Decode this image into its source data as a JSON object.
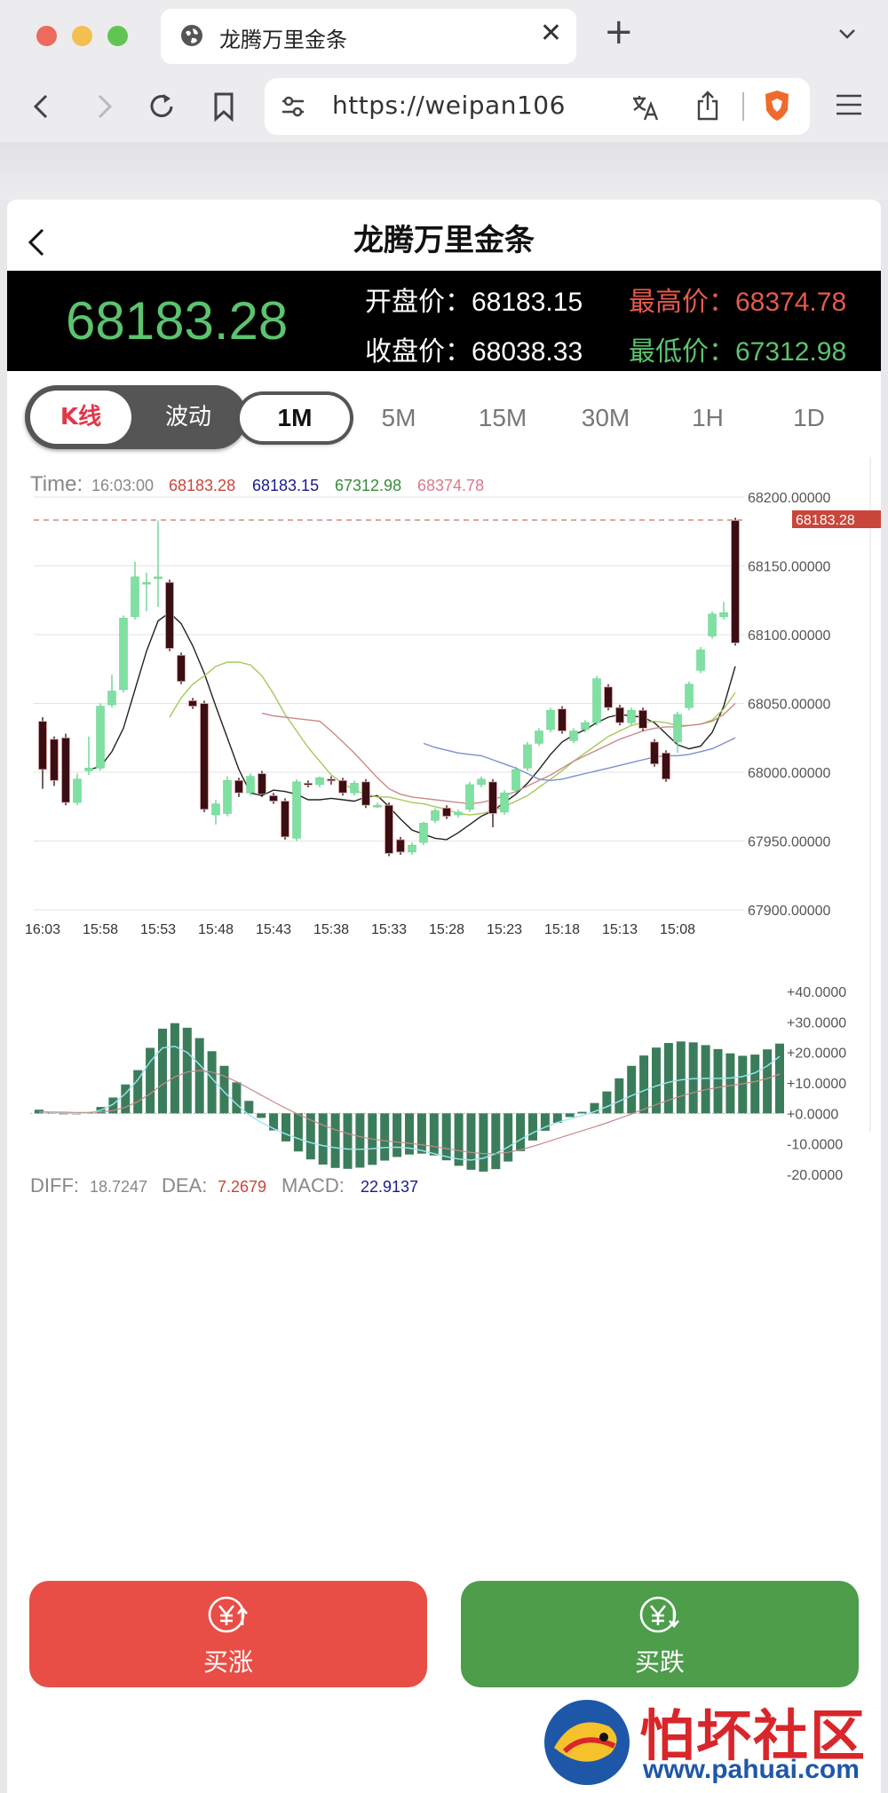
{
  "browser": {
    "tab_title": "龙腾万里金条",
    "url": "https://weipan106"
  },
  "page": {
    "title": "龙腾万里金条"
  },
  "quote": {
    "current_price": "68183.28",
    "open_label": "开盘价：",
    "open_value": "68183.15",
    "high_label": "最高价：",
    "high_value": "68374.78",
    "close_label": "收盘价：",
    "close_value": "68038.33",
    "low_label": "最低价：",
    "low_value": "67312.98"
  },
  "tabs": {
    "kline": "K线",
    "wave": "波动",
    "periods": [
      "1M",
      "5M",
      "15M",
      "30M",
      "1H",
      "1D"
    ],
    "active_period": "1M"
  },
  "chart_info": {
    "time_label": "Time:",
    "time_value": "16:03:00",
    "v1": "68183.28",
    "v2": "68183.15",
    "v3": "67312.98",
    "v4": "68374.78",
    "price_tag": "68183.28"
  },
  "chart_data": [
    {
      "type": "candlestick",
      "x": [
        "16:03",
        "15:58",
        "15:53",
        "15:48",
        "15:43",
        "15:38",
        "15:33",
        "15:28",
        "15:23",
        "15:18",
        "15:13",
        "15:08"
      ],
      "y_ticks": [
        "68200.00000",
        "68150.00000",
        "68100.00000",
        "68050.00000",
        "68000.00000",
        "67950.00000",
        "67900.00000"
      ],
      "ylim": [
        67900,
        68200
      ],
      "last_price": 68183.28,
      "candles": [
        {
          "o": 68037,
          "c": 68002,
          "h": 68040,
          "l": 67988
        },
        {
          "o": 68024,
          "c": 67994,
          "h": 68026,
          "l": 67990
        },
        {
          "o": 68025,
          "c": 67978,
          "h": 68028,
          "l": 67976
        },
        {
          "o": 67978,
          "c": 67995,
          "h": 67999,
          "l": 67976
        },
        {
          "o": 68001,
          "c": 68003,
          "h": 68026,
          "l": 67998
        },
        {
          "o": 68003,
          "c": 68048,
          "h": 68050,
          "l": 68001
        },
        {
          "o": 68049,
          "c": 68059,
          "h": 68071,
          "l": 68047
        },
        {
          "o": 68060,
          "c": 68112,
          "h": 68114,
          "l": 68058
        },
        {
          "o": 68113,
          "c": 68142,
          "h": 68153,
          "l": 68111
        },
        {
          "o": 68138,
          "c": 68138,
          "h": 68145,
          "l": 68117
        },
        {
          "o": 68141,
          "c": 68142,
          "h": 68183,
          "l": 68120
        },
        {
          "o": 68138,
          "c": 68090,
          "h": 68140,
          "l": 68088
        },
        {
          "o": 68085,
          "c": 68066,
          "h": 68087,
          "l": 68064
        },
        {
          "o": 68052,
          "c": 68048,
          "h": 68054,
          "l": 68046
        },
        {
          "o": 68050,
          "c": 67973,
          "h": 68052,
          "l": 67971
        },
        {
          "o": 67969,
          "c": 67977,
          "h": 67980,
          "l": 67962
        },
        {
          "o": 67970,
          "c": 67994,
          "h": 67997,
          "l": 67968
        },
        {
          "o": 67994,
          "c": 67985,
          "h": 67996,
          "l": 67982
        },
        {
          "o": 67985,
          "c": 67997,
          "h": 67999,
          "l": 67983
        },
        {
          "o": 67999,
          "c": 67984,
          "h": 68001,
          "l": 67982
        },
        {
          "o": 67983,
          "c": 67979,
          "h": 67985,
          "l": 67977
        },
        {
          "o": 67979,
          "c": 67953,
          "h": 67981,
          "l": 67951
        },
        {
          "o": 67952,
          "c": 67993,
          "h": 67995,
          "l": 67950
        },
        {
          "o": 67992,
          "c": 67991,
          "h": 67994,
          "l": 67989
        },
        {
          "o": 67991,
          "c": 67996,
          "h": 67997,
          "l": 67989
        },
        {
          "o": 67995,
          "c": 67994,
          "h": 67997,
          "l": 67991
        },
        {
          "o": 67994,
          "c": 67985,
          "h": 67996,
          "l": 67983
        },
        {
          "o": 67985,
          "c": 67992,
          "h": 67994,
          "l": 67983
        },
        {
          "o": 67993,
          "c": 67976,
          "h": 67995,
          "l": 67974
        },
        {
          "o": 67976,
          "c": 67976,
          "h": 67978,
          "l": 67974
        },
        {
          "o": 67976,
          "c": 67941,
          "h": 67978,
          "l": 67939
        },
        {
          "o": 67951,
          "c": 67942,
          "h": 67953,
          "l": 67940
        },
        {
          "o": 67942,
          "c": 67947,
          "h": 67949,
          "l": 67940
        },
        {
          "o": 67949,
          "c": 67963,
          "h": 67964,
          "l": 67947
        },
        {
          "o": 67965,
          "c": 67972,
          "h": 67974,
          "l": 67963
        },
        {
          "o": 67974,
          "c": 67968,
          "h": 67976,
          "l": 67966
        },
        {
          "o": 67969,
          "c": 67971,
          "h": 67973,
          "l": 67967
        },
        {
          "o": 67973,
          "c": 67991,
          "h": 67993,
          "l": 67971
        },
        {
          "o": 67991,
          "c": 67995,
          "h": 67997,
          "l": 67989
        },
        {
          "o": 67993,
          "c": 67970,
          "h": 67995,
          "l": 67960
        },
        {
          "o": 67971,
          "c": 67985,
          "h": 67987,
          "l": 67969
        },
        {
          "o": 67987,
          "c": 68002,
          "h": 68004,
          "l": 67985
        },
        {
          "o": 68003,
          "c": 68020,
          "h": 68022,
          "l": 68001
        },
        {
          "o": 68021,
          "c": 68030,
          "h": 68032,
          "l": 68019
        },
        {
          "o": 68031,
          "c": 68045,
          "h": 68047,
          "l": 68029
        },
        {
          "o": 68046,
          "c": 68030,
          "h": 68048,
          "l": 68028
        },
        {
          "o": 68023,
          "c": 68030,
          "h": 68032,
          "l": 68021
        },
        {
          "o": 68031,
          "c": 68036,
          "h": 68038,
          "l": 68029
        },
        {
          "o": 68036,
          "c": 68068,
          "h": 68070,
          "l": 68034
        },
        {
          "o": 68062,
          "c": 68047,
          "h": 68064,
          "l": 68045
        },
        {
          "o": 68047,
          "c": 68036,
          "h": 68049,
          "l": 68034
        },
        {
          "o": 68036,
          "c": 68045,
          "h": 68047,
          "l": 68034
        },
        {
          "o": 68045,
          "c": 68032,
          "h": 68047,
          "l": 68030
        },
        {
          "o": 68022,
          "c": 68006,
          "h": 68024,
          "l": 68004
        },
        {
          "o": 68014,
          "c": 67995,
          "h": 68016,
          "l": 67993
        },
        {
          "o": 68022,
          "c": 68042,
          "h": 68044,
          "l": 68014
        },
        {
          "o": 68047,
          "c": 68064,
          "h": 68066,
          "l": 68045
        },
        {
          "o": 68074,
          "c": 68089,
          "h": 68091,
          "l": 68072
        },
        {
          "o": 68099,
          "c": 68115,
          "h": 68117,
          "l": 68097
        },
        {
          "o": 68113,
          "c": 68116,
          "h": 68124,
          "l": 68111
        },
        {
          "o": 68183,
          "c": 68094,
          "h": 68185,
          "l": 68092
        }
      ],
      "ma_series": [
        {
          "color": "#222222",
          "values": [
            null,
            null,
            null,
            null,
            68002,
            68004,
            68015,
            68032,
            68060,
            68088,
            68110,
            68116,
            68108,
            68092,
            68072,
            68048,
            68025,
            68002,
            67985,
            67983,
            67987,
            67986,
            67984,
            67980,
            67980,
            67981,
            67980,
            67979,
            67982,
            67983,
            67975,
            67966,
            67958,
            67955,
            67952,
            67951,
            67956,
            67962,
            67968,
            67972,
            67978,
            67984,
            67992,
            68002,
            68013,
            68022,
            68027,
            68031,
            68036,
            68040,
            68042,
            68041,
            68040,
            68036,
            68028,
            68020,
            68017,
            68019,
            68029,
            68048,
            68077
          ]
        },
        {
          "color": "#a5c95a",
          "values": [
            null,
            null,
            null,
            null,
            null,
            null,
            null,
            null,
            null,
            null,
            null,
            68040,
            68054,
            68064,
            68070,
            68077,
            68080,
            68080,
            68078,
            68070,
            68057,
            68042,
            68030,
            68018,
            68008,
            67998,
            67992,
            67987,
            67984,
            67982,
            67982,
            67980,
            67978,
            67977,
            67975,
            67973,
            67970,
            67969,
            67970,
            67972,
            67975,
            67979,
            67983,
            67989,
            67995,
            68001,
            68008,
            68014,
            68020,
            68026,
            68030,
            68034,
            68036,
            68037,
            68036,
            68034,
            68034,
            68035,
            68038,
            68046,
            68058
          ]
        },
        {
          "color": "#c98a8a",
          "values": [
            null,
            null,
            null,
            null,
            null,
            null,
            null,
            null,
            null,
            null,
            null,
            null,
            null,
            null,
            null,
            null,
            null,
            null,
            null,
            68043,
            68041,
            68040,
            68039,
            68038,
            68037,
            68030,
            68022,
            68014,
            68005,
            67996,
            67988,
            67984,
            67982,
            67981,
            67980,
            67979,
            67978,
            67977,
            67978,
            67980,
            67983,
            67986,
            67990,
            67994,
            67998,
            68003,
            68008,
            68012,
            68016,
            68020,
            68024,
            68027,
            68030,
            68032,
            68033,
            68033,
            68034,
            68035,
            68037,
            68042,
            68050
          ]
        },
        {
          "color": "#7b8fd0",
          "values": [
            null,
            null,
            null,
            null,
            null,
            null,
            null,
            null,
            null,
            null,
            null,
            null,
            null,
            null,
            null,
            null,
            null,
            null,
            null,
            null,
            null,
            null,
            null,
            null,
            null,
            null,
            null,
            null,
            null,
            null,
            null,
            null,
            null,
            68021,
            68018,
            68016,
            68014,
            68013,
            68012,
            68009,
            68006,
            68003,
            67999,
            67995,
            67994,
            67995,
            67997,
            67999,
            68001,
            68003,
            68005,
            68007,
            68009,
            68011,
            68012,
            68012,
            68013,
            68015,
            68017,
            68021,
            68025
          ]
        }
      ]
    },
    {
      "type": "bar",
      "name": "MACD",
      "y_ticks": [
        "+40.0000",
        "+30.0000",
        "+20.0000",
        "+10.0000",
        "+0.0000",
        "-10.0000",
        "-20.0000"
      ],
      "ylim": [
        -20,
        40
      ],
      "values": [
        1.2,
        0.5,
        -0.3,
        -0.3,
        0.4,
        2.1,
        5.2,
        9.5,
        14.2,
        21.5,
        27.8,
        29.6,
        28.1,
        24.7,
        20.4,
        15.6,
        10.2,
        4.1,
        -1.5,
        -5.6,
        -9.2,
        -12.5,
        -15.1,
        -16.8,
        -17.9,
        -18.2,
        -17.8,
        -16.9,
        -15.5,
        -14.3,
        -13.5,
        -13.2,
        -13.8,
        -15.4,
        -17.2,
        -18.5,
        -19.1,
        -18.3,
        -15.8,
        -12.4,
        -8.9,
        -5.7,
        -3.1,
        -1.2,
        0.5,
        3.4,
        7.2,
        11.5,
        15.6,
        19.0,
        21.6,
        23.1,
        23.6,
        23.3,
        22.4,
        21.1,
        19.7,
        18.9,
        19.3,
        21.0,
        22.9
      ],
      "diff_values": [
        0.5,
        0.3,
        0.1,
        0.0,
        0.2,
        1.0,
        3.0,
        6.5,
        11.0,
        17.0,
        21.5,
        22.0,
        20.0,
        16.0,
        11.5,
        7.0,
        3.0,
        -0.5,
        -3.0,
        -5.0,
        -6.8,
        -8.3,
        -9.6,
        -10.6,
        -11.3,
        -11.7,
        -11.8,
        -11.6,
        -11.2,
        -11.1,
        -11.4,
        -12.2,
        -13.2,
        -14.2,
        -15.0,
        -15.3,
        -14.7,
        -13.2,
        -11.0,
        -8.6,
        -6.4,
        -4.5,
        -3.0,
        -1.8,
        -0.7,
        0.6,
        2.2,
        4.0,
        5.8,
        7.5,
        9.0,
        10.2,
        11.0,
        11.4,
        11.5,
        11.5,
        11.6,
        12.1,
        13.3,
        15.6,
        18.7
      ]
    }
  ],
  "macd_info": {
    "diff_label": "DIFF:",
    "diff_value": "18.7247",
    "dea_label": "DEA:",
    "dea_value": "7.2679",
    "macd_label": "MACD:",
    "macd_value": "22.9137"
  },
  "actions": {
    "buy_up": "买涨",
    "buy_down": "买跌"
  },
  "watermark": {
    "title": "怕坏社区",
    "url": "www.pahuai.com"
  },
  "colors": {
    "up": "#7fe0a2",
    "down": "#3a0f14",
    "price_tag": "#c9463a",
    "red_button": "#e94e46",
    "green_button": "#4d9d4b",
    "macd_bar": "#3b7d5b"
  }
}
